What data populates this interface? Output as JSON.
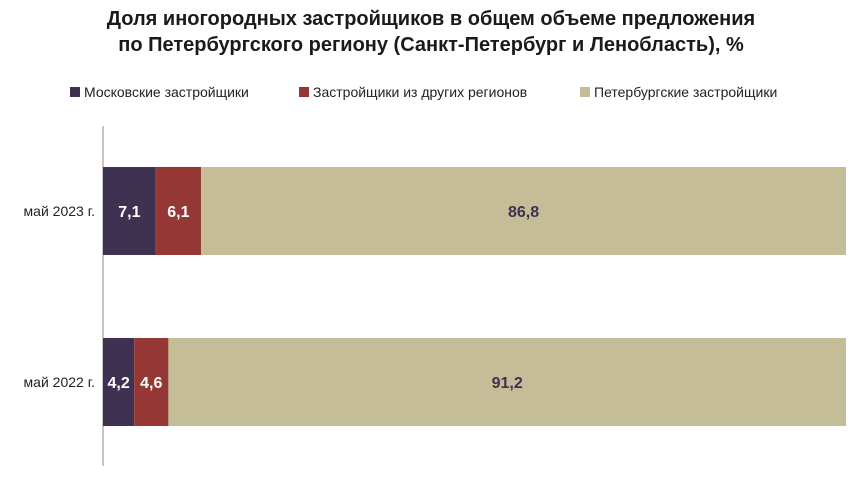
{
  "chart_data": {
    "type": "bar",
    "orientation": "horizontal",
    "stacked": true,
    "title": "Доля иногородных застройщиков в общем объеме предложения",
    "subtitle": "по Петербургского региону (Санкт-Петербург и Ленобласть), %",
    "categories": [
      "май 2023 г.",
      "май 2022 г."
    ],
    "series": [
      {
        "name": "Московские застройщики",
        "values": [
          7.1,
          4.2
        ],
        "labels": [
          "7,1",
          "4,2"
        ],
        "color": "#3f3151",
        "label_color": "#ffffff"
      },
      {
        "name": "Застройщики из других регионов",
        "values": [
          6.1,
          4.6
        ],
        "labels": [
          "6,1",
          "4,6"
        ],
        "color": "#953735",
        "label_color": "#ffffff"
      },
      {
        "name": "Петербургские застройщики",
        "values": [
          86.8,
          91.2
        ],
        "labels": [
          "86,8",
          "91,2"
        ],
        "color": "#c4bd97",
        "label_color": "#3f3151"
      }
    ],
    "xlim": [
      0,
      100
    ],
    "grid": false,
    "legend_position": "top"
  }
}
